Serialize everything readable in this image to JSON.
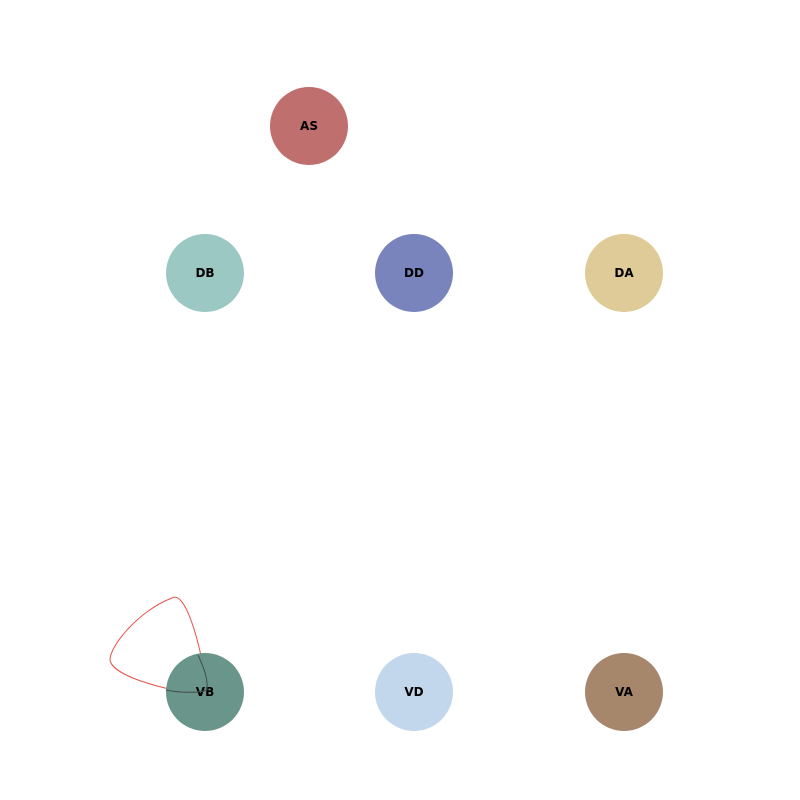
{
  "diagram": {
    "nodes": [
      {
        "id": "AS",
        "label": "AS",
        "color": "#c06f6f"
      },
      {
        "id": "DB",
        "label": "DB",
        "color": "#9bc8c3"
      },
      {
        "id": "DD",
        "label": "DD",
        "color": "#7884bb"
      },
      {
        "id": "DA",
        "label": "DA",
        "color": "#dfcb98"
      },
      {
        "id": "VB",
        "label": "VB",
        "color": "#6a958b"
      },
      {
        "id": "VD",
        "label": "VD",
        "color": "#c2d6ec"
      },
      {
        "id": "VA",
        "label": "VA",
        "color": "#a6876b"
      }
    ],
    "edges": [
      {
        "from": "VB",
        "to": "VB",
        "type": "self-loop",
        "color": "#e8504a"
      }
    ]
  }
}
